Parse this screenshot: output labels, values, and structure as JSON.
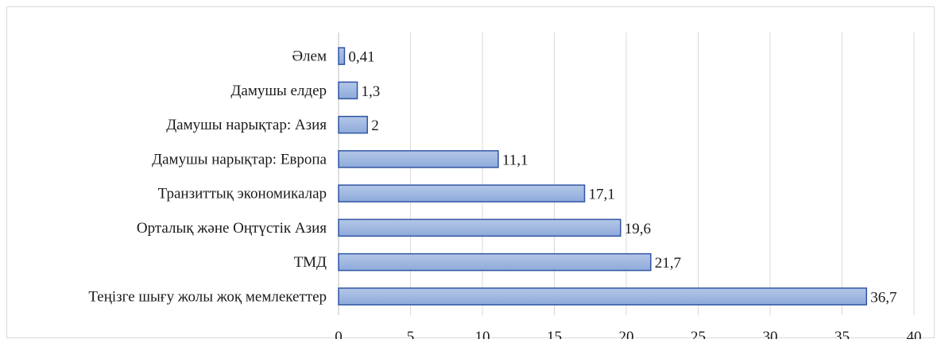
{
  "chart_data": {
    "type": "bar",
    "orientation": "horizontal",
    "categories": [
      "Әлем",
      "Дамушы елдер",
      "Дамушы нарықтар: Азия",
      "Дамушы нарықтар: Европа",
      "Транзиттық экономикалар",
      "Орталық және Оңтүстік Азия",
      "ТМД",
      "Теңізге шығу жолы жоқ мемлекеттер"
    ],
    "values": [
      0.41,
      1.3,
      2,
      11.1,
      17.1,
      19.6,
      21.7,
      36.7
    ],
    "data_labels": [
      "0,41",
      "1,3",
      "2",
      "11,1",
      "17,1",
      "19,6",
      "21,7",
      "36,7"
    ],
    "xlim": [
      0,
      40
    ],
    "x_ticks": [
      "0",
      "5",
      "10",
      "15",
      "20",
      "25",
      "30",
      "35",
      "40"
    ],
    "grid": "vertical",
    "legend": "none",
    "title": "",
    "xlabel": "",
    "ylabel": "",
    "colors": {
      "bar_fill_top": "#b4c7e7",
      "bar_fill_bottom": "#8eaadb",
      "bar_stroke": "#2f55a4",
      "grid": "#d9d9d9",
      "axis": "#bfbfbf"
    }
  }
}
